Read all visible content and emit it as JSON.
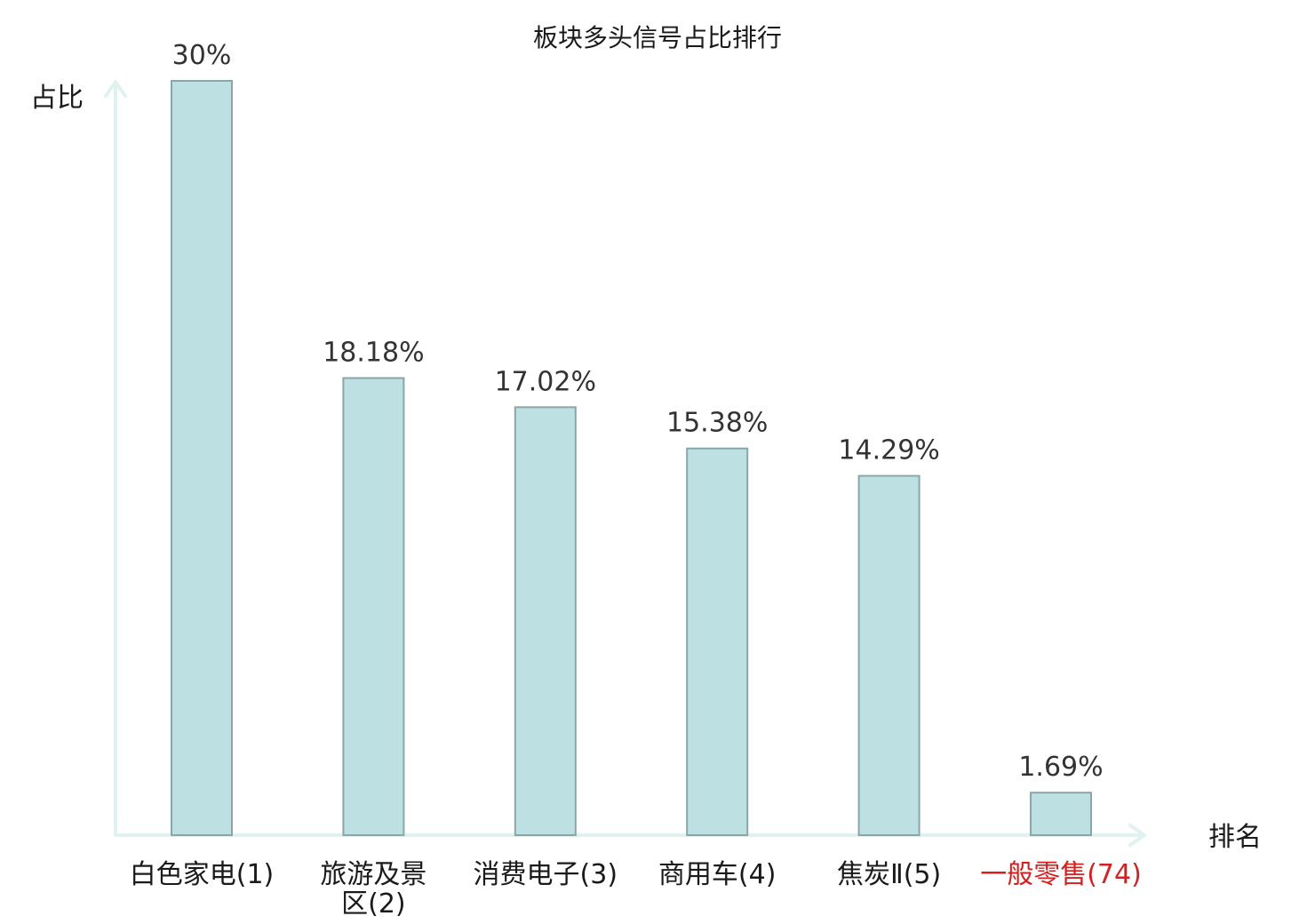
{
  "chart_data": {
    "type": "bar",
    "title": "板块多头信号占比排行",
    "ylabel": "占比",
    "xlabel": "排名",
    "ylim": [
      0,
      30
    ],
    "categories": [
      [
        "白色家电(1)"
      ],
      [
        "旅游及景",
        "区(2)"
      ],
      [
        "消费电子(3)"
      ],
      [
        "商用车(4)"
      ],
      [
        "焦炭Ⅱ(5)"
      ],
      [
        "一般零售(74)"
      ]
    ],
    "values": [
      30,
      18.18,
      17.02,
      15.38,
      14.29,
      1.69
    ],
    "value_labels": [
      "30%",
      "18.18%",
      "17.02%",
      "15.38%",
      "14.29%",
      "1.69%"
    ],
    "highlight_index": 5,
    "colors": {
      "bar_fill": "#bde0e2",
      "bar_stroke": "#8aa6a8",
      "axis": "#dff2ef",
      "highlight_text": "#d42020",
      "text": "#1a1a1a"
    },
    "grid": false
  }
}
